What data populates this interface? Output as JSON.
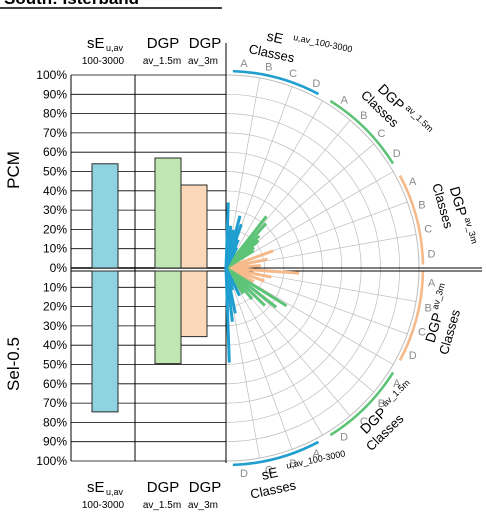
{
  "colors": {
    "se_fill": "#8fd3e0",
    "se_stroke": "#2a2a2a",
    "dgp15_fill": "#bfe6b3",
    "dgp3_fill": "#fcd8bb",
    "se_ray": "#1f9ed0",
    "dgp15_ray": "#5cc377",
    "dgp3_ray": "#f5b98a",
    "grid": "#bdbdbd",
    "axis": "#000000",
    "class_letter": "#8a8a8a"
  },
  "title": "South: Isterband",
  "left_panel": {
    "yticks": [
      "100%",
      "90%",
      "80%",
      "70%",
      "60%",
      "50%",
      "40%",
      "30%",
      "20%",
      "10%",
      "0%",
      "10%",
      "20%",
      "30%",
      "40%",
      "50%",
      "60%",
      "70%",
      "80%",
      "90%",
      "100%"
    ],
    "upper_label": "PCM",
    "lower_label": "Sel-0.5",
    "header": {
      "se_main": "sE",
      "se_sub": "u,av",
      "se_range": "100-3000",
      "dgp_a": "DGP",
      "dgp_b": "DGP",
      "dgp_a_sub": "av_1.5m",
      "dgp_b_sub": "av_3m"
    },
    "footer": {
      "se_main": "sE",
      "se_sub": "u,av",
      "se_range": "100-3000",
      "dgp_a": "DGP",
      "dgp_b": "DGP",
      "dgp_a_sub": "av_1.5m",
      "dgp_b_sub": "av_3m"
    }
  },
  "right_panel": {
    "class_letters": [
      "A",
      "B",
      "C",
      "D"
    ],
    "group_labels": {
      "se_top": {
        "main": "sE",
        "sub": "u,av_100-3000",
        "classes": "Classes"
      },
      "dgp15_top": {
        "main": "DGP",
        "sub": "av_1.5m",
        "classes": "Classes"
      },
      "dgp3_top": {
        "main": "DGP",
        "sub": "av_3m",
        "classes": "Classes"
      },
      "dgp3_bottom": {
        "main": "DGP",
        "sub": "av_3m",
        "classes": "Classes"
      },
      "dgp15_bottom": {
        "main": "DGP",
        "sub": "av_1.5m",
        "classes": "Classes"
      },
      "se_bottom": {
        "main": "sE",
        "sub": "u,av_100-3000",
        "classes": "Classes"
      }
    }
  },
  "chart_data": {
    "type": "bar",
    "ylim_pcm": [
      0,
      100
    ],
    "ylim_sel": [
      0,
      100
    ],
    "categories": [
      "sE u,av 100-3000",
      "DGP av_1.5m",
      "DGP av_3m"
    ],
    "series": [
      {
        "name": "PCM",
        "values": [
          54,
          57,
          43
        ]
      },
      {
        "name": "Sel-0.5",
        "values": [
          73,
          48,
          34
        ]
      }
    ],
    "rays": {
      "se": {
        "pcm": [
          34,
          22,
          20,
          28,
          24,
          16,
          12
        ],
        "sel": [
          49,
          28,
          24,
          12,
          10,
          16
        ]
      },
      "dgp15": {
        "pcm": [
          34,
          31,
          24,
          22,
          18,
          17
        ],
        "sel": [
          37,
          33,
          28,
          21,
          16
        ]
      },
      "dgp3": {
        "pcm": [
          26,
          22,
          18
        ],
        "sel": [
          38,
          24,
          21,
          16
        ]
      }
    }
  }
}
